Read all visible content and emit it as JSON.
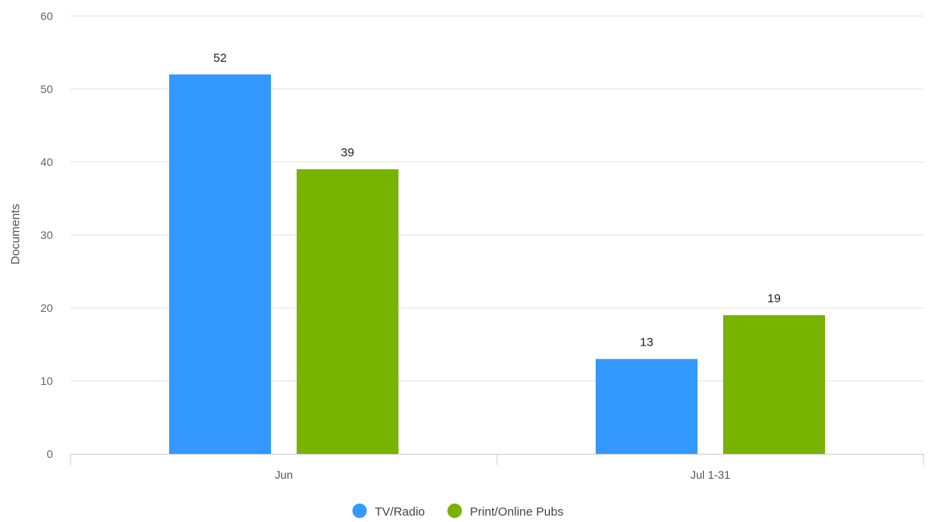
{
  "chart_data": {
    "type": "bar",
    "categories": [
      "Jun",
      "Jul 1-31"
    ],
    "series": [
      {
        "name": "TV/Radio",
        "color": "#3399ff",
        "values": [
          52,
          13
        ]
      },
      {
        "name": "Print/Online Pubs",
        "color": "#77b300",
        "values": [
          39,
          19
        ]
      }
    ],
    "ylabel": "Documents",
    "ylim": [
      0,
      60
    ],
    "yticks": [
      0,
      10,
      20,
      30,
      40,
      50,
      60
    ],
    "grid": true,
    "legend": "bottom-center",
    "data_labels": true
  }
}
